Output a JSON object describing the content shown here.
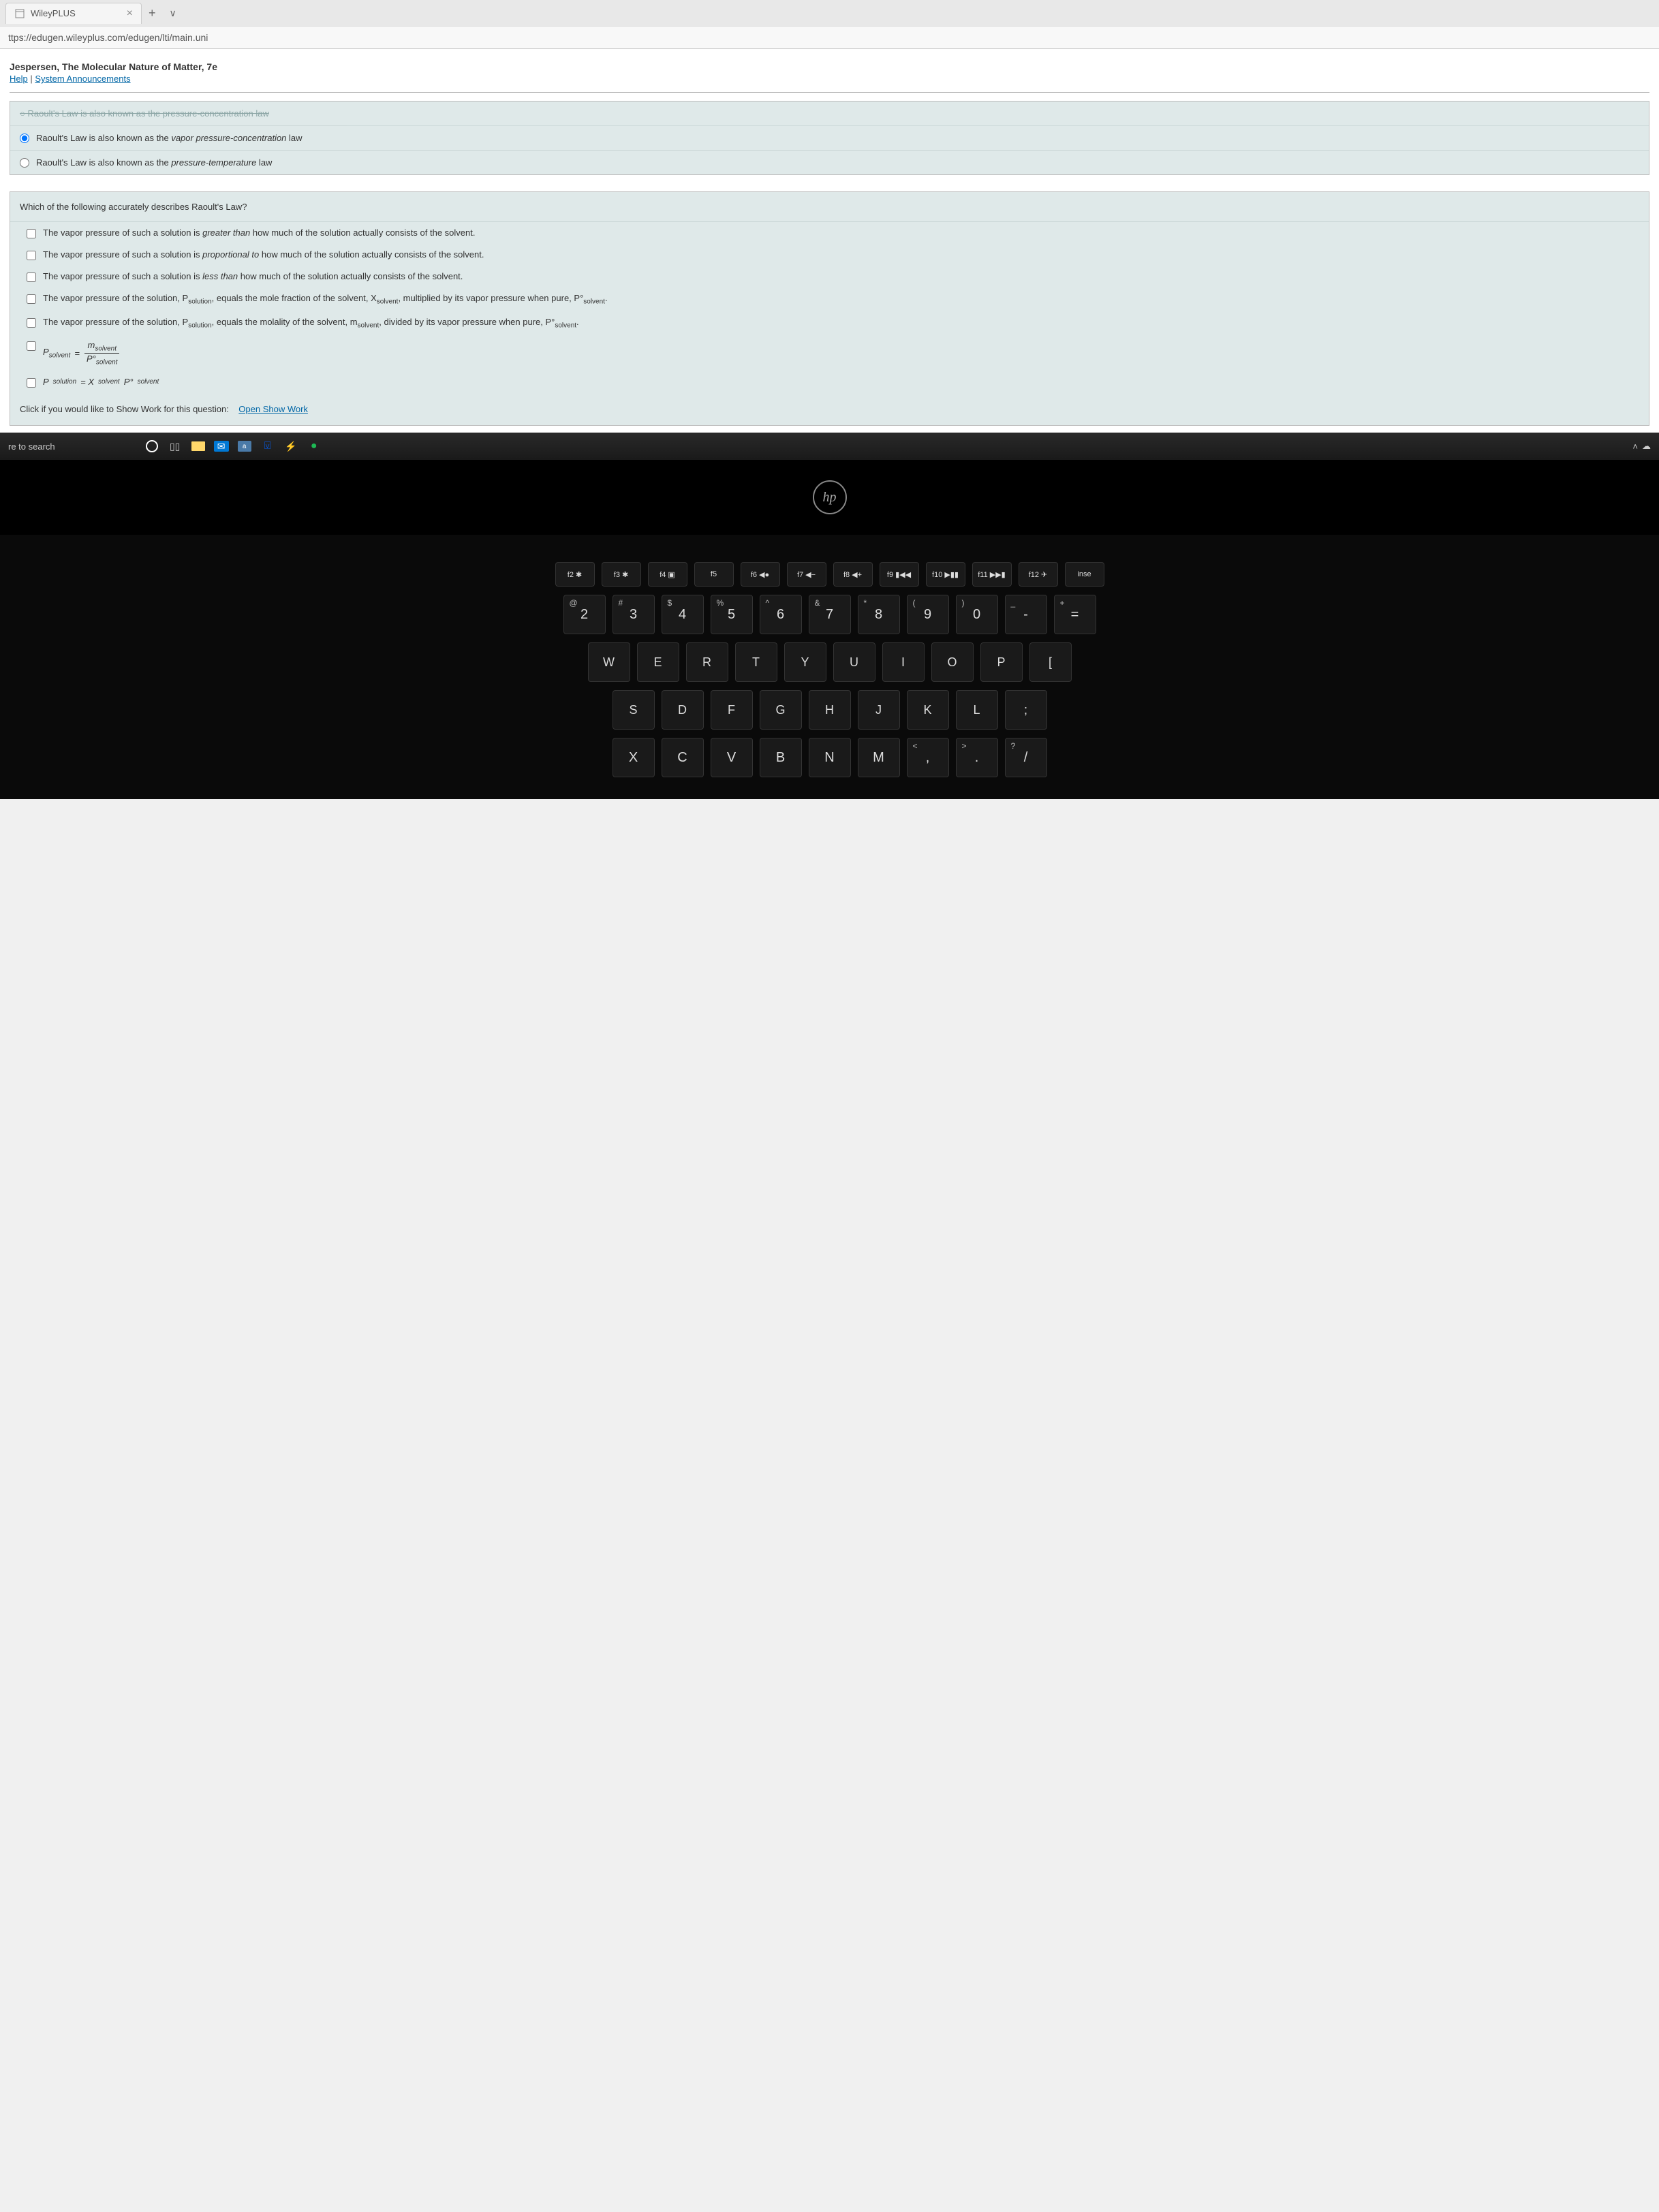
{
  "browser": {
    "tab_title": "WileyPLUS",
    "url": "ttps://edugen.wileyplus.com/edugen/lti/main.uni"
  },
  "header": {
    "book_title": "Jespersen, The Molecular Nature of Matter, 7e",
    "help_link": "Help",
    "announcements_link": "System Announcements"
  },
  "q1": {
    "cutoff": "Raoult's Law is also known as the pressure-concentration law",
    "opt_b_pre": "Raoult's Law is also known as the ",
    "opt_b_italic": "vapor pressure-concentration",
    "opt_b_post": " law",
    "opt_c_pre": "Raoult's Law is also known as the ",
    "opt_c_italic": "pressure-temperature",
    "opt_c_post": " law"
  },
  "q2": {
    "title": "Which of the following accurately describes Raoult's Law?",
    "opt1_pre": "The vapor pressure of such a solution is ",
    "opt1_italic": "greater than",
    "opt1_post": " how much of the solution actually consists of the solvent.",
    "opt2_pre": "The vapor pressure of such a solution is ",
    "opt2_italic": "proportional to",
    "opt2_post": " how much of the solution actually consists of the solvent.",
    "opt3_pre": "The vapor pressure of such a solution is ",
    "opt3_italic": "less than",
    "opt3_post": " how much of the solution actually consists of the solvent.",
    "opt4": "The vapor pressure of the solution, P",
    "opt4_sub1": "solution",
    "opt4_mid": ", equals the mole fraction of the solvent, X",
    "opt4_sub2": "solvent",
    "opt4_mid2": ", multiplied by its vapor pressure when pure, P°",
    "opt4_sub3": "solvent",
    "opt4_end": ".",
    "opt5": "The vapor pressure of the solution, P",
    "opt5_sub1": "solution",
    "opt5_mid": ", equals the molality of the solvent, m",
    "opt5_sub2": "solvent",
    "opt5_mid2": ", divided by its vapor pressure when pure, P°",
    "opt5_sub3": "solvent",
    "opt5_end": ".",
    "opt6_lhs": "P",
    "opt6_lhs_sub": "solvent",
    "opt6_eq": " = ",
    "opt6_num": "m",
    "opt6_num_sub": "solvent",
    "opt6_den": "P°",
    "opt6_den_sub": "solvent",
    "opt7_lhs": "P",
    "opt7_lhs_sub": "solution",
    "opt7_eq": " = X",
    "opt7_x_sub": "solvent",
    "opt7_p": " P°",
    "opt7_p_sub": "solvent"
  },
  "show_work": {
    "label": "Click if you would like to Show Work for this question:",
    "link": "Open Show Work"
  },
  "taskbar": {
    "search": "re to search"
  },
  "hp": "hp",
  "keys": {
    "fn": [
      "f2 ✱",
      "f3 ✱",
      "f4 ▣",
      "f5",
      "f6 ◀●",
      "f7 ◀−",
      "f8 ◀+",
      "f9 ▮◀◀",
      "f10 ▶▮▮",
      "f11 ▶▶▮",
      "f12 ✈",
      "inse"
    ],
    "num_top": [
      "@",
      "#",
      "$",
      "%",
      "^",
      "&",
      "*",
      "(",
      ")",
      "_",
      "+"
    ],
    "num": [
      "2",
      "3",
      "4",
      "5",
      "6",
      "7",
      "8",
      "9",
      "0",
      "-",
      "="
    ],
    "r2": [
      "W",
      "E",
      "R",
      "T",
      "Y",
      "U",
      "I",
      "O",
      "P",
      "["
    ],
    "r3": [
      "S",
      "D",
      "F",
      "G",
      "H",
      "J",
      "K",
      "L",
      ";"
    ],
    "r4": [
      "X",
      "C",
      "V",
      "B",
      "N",
      "M",
      ",",
      ".",
      "/"
    ],
    "r4_top": [
      "",
      "",
      "",
      "",
      "",
      "",
      "<",
      ">",
      "?"
    ]
  }
}
